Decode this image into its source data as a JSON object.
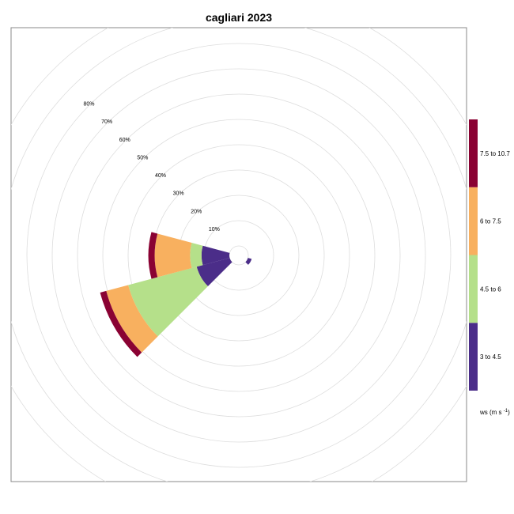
{
  "chart_data": {
    "type": "wind-rose",
    "title": "cagliari 2023",
    "ring_labels": [
      "10%",
      "20%",
      "30%",
      "40%",
      "50%",
      "60%",
      "70%",
      "80%"
    ],
    "ring_values": [
      10,
      20,
      30,
      40,
      50,
      60,
      70,
      80
    ],
    "legend_title_prefix": "ws (m s",
    "legend_title_sup": "-1",
    "legend_title_suffix": ")",
    "bins": [
      {
        "label": "3 to 4.5",
        "color": "#4b2d89"
      },
      {
        "label": "4.5 to 6",
        "color": "#b5e08a"
      },
      {
        "label": "6 to 7.5",
        "color": "#f8b05f"
      },
      {
        "label": "7.5 to 10.7",
        "color": "#8a0233"
      }
    ],
    "directions": [
      {
        "angle": 240,
        "cumulative": [
          13.5,
          41.5,
          50.5,
          53
        ]
      },
      {
        "angle": 270,
        "cumulative": [
          11,
          15.5,
          29.5,
          32
        ]
      },
      {
        "angle": 120,
        "cumulative": [
          1.5,
          1.5,
          1.5,
          1.5
        ]
      }
    ],
    "calm_radius_pct": 1.5,
    "grid": true
  }
}
